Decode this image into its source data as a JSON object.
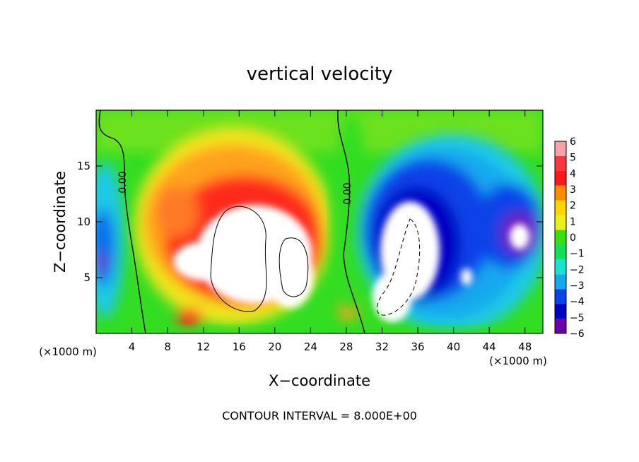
{
  "chart_data": {
    "type": "heatmap",
    "title": "vertical velocity",
    "xlabel": "X−coordinate",
    "ylabel": "Z−coordinate",
    "x_unit_left": "(×1000 m)",
    "x_unit_right": "(×1000 m)",
    "xlim": [
      0,
      50
    ],
    "ylim": [
      0,
      20
    ],
    "x_ticks": [
      4,
      8,
      12,
      16,
      20,
      24,
      28,
      32,
      36,
      40,
      44,
      48
    ],
    "x_tick_labels": [
      "4",
      "8",
      "12",
      "16",
      "20",
      "24",
      "28",
      "32",
      "36",
      "40",
      "44",
      "48"
    ],
    "y_ticks": [
      5,
      10,
      15
    ],
    "y_tick_labels": [
      "5",
      "10",
      "15"
    ],
    "colorbar": {
      "levels": [
        6,
        5,
        4,
        3,
        2,
        1,
        0,
        -1,
        -2,
        -3,
        -4,
        -5,
        -6
      ],
      "labels": [
        "6",
        "5",
        "4",
        "3",
        "2",
        "1",
        "0",
        "−1",
        "−2",
        "−3",
        "−4",
        "−5",
        "−6"
      ],
      "colors": [
        "#f7a3a3",
        "#f7393f",
        "#ff1a1a",
        "#ff8c00",
        "#ffd400",
        "#e8ef1a",
        "#38e010",
        "#12df58",
        "#19e3cf",
        "#14a8ee",
        "#0b43e8",
        "#0000c4",
        "#6a00a8"
      ]
    },
    "contour_labels": [
      "0.00",
      "0.00"
    ],
    "contour_interval": "CONTOUR INTERVAL = 8.000E+00",
    "features": [
      {
        "kind": "updraft-core",
        "x_range": [
          5,
          27
        ],
        "z_range": [
          0.5,
          13.5
        ],
        "peak_max": 6
      },
      {
        "kind": "downdraft-core",
        "x_range": [
          30,
          40
        ],
        "z_range": [
          0.5,
          13
        ],
        "peak_min": -6
      },
      {
        "kind": "downdraft",
        "x_range": [
          41,
          50
        ],
        "z_range": [
          3,
          11
        ],
        "peak_min": -6
      }
    ]
  },
  "colors": {
    "background": "#ffffff",
    "axis": "#000000",
    "field_base": "#33dd22"
  }
}
